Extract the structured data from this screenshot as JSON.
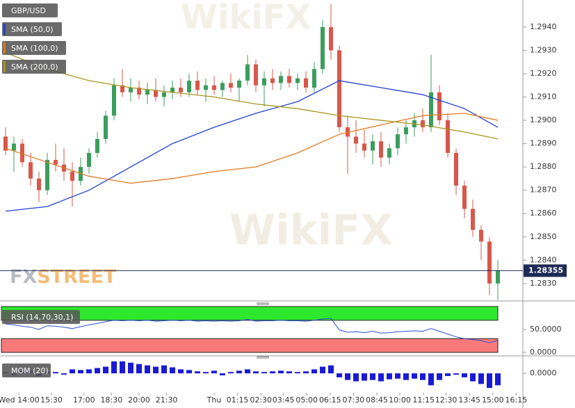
{
  "watermark": [
    "FX",
    "STREET",
    "WikiFX"
  ],
  "chart_data": [
    {
      "type": "candlestick",
      "title": "GBP/USD",
      "ylim": [
        1.28228,
        1.29516
      ],
      "yticks": [
        {
          "value": 1.283,
          "label": "1.2830"
        },
        {
          "value": 1.284,
          "label": "1.2840"
        },
        {
          "value": 1.285,
          "label": "1.2850"
        },
        {
          "value": 1.286,
          "label": "1.2860"
        },
        {
          "value": 1.287,
          "label": "1.2870"
        },
        {
          "value": 1.288,
          "label": "1.2880"
        },
        {
          "value": 1.289,
          "label": "1.2890"
        },
        {
          "value": 1.29,
          "label": "1.2900"
        },
        {
          "value": 1.291,
          "label": "1.2910"
        },
        {
          "value": 1.292,
          "label": "1.2920"
        },
        {
          "value": 1.293,
          "label": "1.2930"
        },
        {
          "value": 1.294,
          "label": "1.2940"
        }
      ],
      "xticks": [
        {
          "value": 1.6,
          "label": "Wed 14:00"
        },
        {
          "value": 5.5,
          "label": "15:30"
        },
        {
          "value": 9.4,
          "label": "17:00"
        },
        {
          "value": 12.7,
          "label": "18:30"
        },
        {
          "value": 16,
          "label": "20:00"
        },
        {
          "value": 19.3,
          "label": "21:30"
        },
        {
          "value": 25,
          "label": "Thu"
        },
        {
          "value": 27.8,
          "label": "01:15"
        },
        {
          "value": 30.6,
          "label": "02:30"
        },
        {
          "value": 33.3,
          "label": "03:45"
        },
        {
          "value": 36.1,
          "label": "05:00"
        },
        {
          "value": 38.9,
          "label": "06:15"
        },
        {
          "value": 41.7,
          "label": "07:30"
        },
        {
          "value": 44.5,
          "label": "08:45"
        },
        {
          "value": 47.25,
          "label": "10:00"
        },
        {
          "value": 50.1,
          "label": "11:15"
        },
        {
          "value": 52.8,
          "label": "12:30"
        },
        {
          "value": 55.6,
          "label": "13:45"
        },
        {
          "value": 58.4,
          "label": "15:00"
        },
        {
          "value": 61.2,
          "label": "16:15"
        }
      ],
      "last_price": 1.28355,
      "up_color": "#3c9d5d",
      "down_color": "#d9574a",
      "open": [
        1.2893,
        1.2887,
        1.289,
        1.2882,
        1.2875,
        1.287,
        1.2883,
        1.2881,
        1.2878,
        1.2874,
        1.288,
        1.2886,
        1.2892,
        1.2902,
        1.2915,
        1.2912,
        1.2914,
        1.2911,
        1.2913,
        1.291,
        1.2912,
        1.2914,
        1.2912,
        1.2917,
        1.2913,
        1.2915,
        1.2913,
        1.2916,
        1.2914,
        1.2917,
        1.2924,
        1.2915,
        1.2918,
        1.2916,
        1.2919,
        1.2916,
        1.2918,
        1.2914,
        1.2922,
        1.294,
        1.293,
        1.2897,
        1.2893,
        1.289,
        1.2887,
        1.2891,
        1.2884,
        1.2888,
        1.2894,
        1.2897,
        1.29,
        1.2897,
        1.2912,
        1.29,
        1.2886,
        1.2872,
        1.2862,
        1.2853,
        1.2848,
        1.283
      ],
      "high": [
        1.2897,
        1.2893,
        1.2892,
        1.2886,
        1.2878,
        1.2886,
        1.289,
        1.2888,
        1.2882,
        1.2884,
        1.2888,
        1.2895,
        1.2904,
        1.2918,
        1.2922,
        1.2918,
        1.2917,
        1.2916,
        1.2918,
        1.2915,
        1.2917,
        1.2918,
        1.292,
        1.2921,
        1.2918,
        1.2919,
        1.2917,
        1.292,
        1.2918,
        1.2928,
        1.2926,
        1.2921,
        1.2922,
        1.2921,
        1.2922,
        1.292,
        1.2921,
        1.2925,
        1.2943,
        1.295,
        1.2932,
        1.2902,
        1.29,
        1.2896,
        1.2894,
        1.2895,
        1.289,
        1.2897,
        1.29,
        1.2903,
        1.2905,
        1.2928,
        1.2915,
        1.2903,
        1.2888,
        1.2874,
        1.2866,
        1.2855,
        1.285,
        1.284
      ],
      "low": [
        1.2885,
        1.2878,
        1.288,
        1.2872,
        1.2865,
        1.2868,
        1.2878,
        1.2874,
        1.2863,
        1.2872,
        1.2877,
        1.2884,
        1.289,
        1.29,
        1.291,
        1.2908,
        1.2909,
        1.2907,
        1.2908,
        1.2906,
        1.2909,
        1.291,
        1.291,
        1.2911,
        1.2908,
        1.2911,
        1.291,
        1.2912,
        1.2908,
        1.2915,
        1.2912,
        1.2906,
        1.2913,
        1.2913,
        1.2914,
        1.2913,
        1.2912,
        1.2912,
        1.292,
        1.2926,
        1.2895,
        1.2877,
        1.2886,
        1.2884,
        1.2881,
        1.288,
        1.2881,
        1.2885,
        1.289,
        1.2893,
        1.2895,
        1.2895,
        1.2898,
        1.2884,
        1.2868,
        1.2858,
        1.285,
        1.284,
        1.2825,
        1.2823
      ],
      "close": [
        1.2887,
        1.289,
        1.2882,
        1.2875,
        1.287,
        1.2883,
        1.2881,
        1.2878,
        1.2874,
        1.288,
        1.2886,
        1.2892,
        1.2902,
        1.2915,
        1.2912,
        1.2914,
        1.2911,
        1.2913,
        1.291,
        1.2912,
        1.2914,
        1.2912,
        1.2917,
        1.2913,
        1.2915,
        1.2913,
        1.2916,
        1.2914,
        1.2917,
        1.2924,
        1.2915,
        1.2918,
        1.2916,
        1.2919,
        1.2916,
        1.2918,
        1.2914,
        1.2922,
        1.294,
        1.293,
        1.2897,
        1.2893,
        1.289,
        1.2887,
        1.2891,
        1.2884,
        1.2888,
        1.2894,
        1.2897,
        1.29,
        1.2897,
        1.2912,
        1.29,
        1.2886,
        1.2872,
        1.2862,
        1.2853,
        1.2848,
        1.283,
        1.28355
      ],
      "series": [
        {
          "name": "SMA (50,0)",
          "color": "#2140d0",
          "x": [
            0,
            5,
            10,
            15,
            20,
            25,
            30,
            35,
            40,
            45,
            50,
            55,
            59
          ],
          "values": [
            1.2861,
            1.2863,
            1.287,
            1.288,
            1.289,
            1.2897,
            1.2903,
            1.2908,
            1.2917,
            1.2914,
            1.2911,
            1.2905,
            1.2897
          ]
        },
        {
          "name": "SMA (100,0)",
          "color": "#e07a20",
          "x": [
            0,
            5,
            10,
            15,
            20,
            25,
            30,
            35,
            40,
            45,
            50,
            55,
            59
          ],
          "values": [
            1.2888,
            1.2882,
            1.2876,
            1.2873,
            1.2875,
            1.2878,
            1.288,
            1.2886,
            1.2894,
            1.2898,
            1.2902,
            1.2903,
            1.29
          ]
        },
        {
          "name": "SMA (200,0)",
          "color": "#a8951c",
          "x": [
            0,
            5,
            10,
            15,
            20,
            25,
            30,
            35,
            40,
            45,
            50,
            55,
            59
          ],
          "values": [
            1.2929,
            1.2922,
            1.2917,
            1.2914,
            1.2912,
            1.291,
            1.2907,
            1.2905,
            1.2902,
            1.29,
            1.2898,
            1.2895,
            1.2892
          ]
        }
      ]
    },
    {
      "type": "line",
      "title": "RSI (14,70,30,1)",
      "ylim": [
        0,
        100
      ],
      "yticks": [
        {
          "value": 0,
          "label": "0.0000"
        },
        {
          "value": 50,
          "label": "50.0000"
        }
      ],
      "overbought": 70,
      "oversold": 30,
      "color": "#2b4fd6",
      "values": [
        62,
        60,
        57,
        55,
        50,
        58,
        57,
        55,
        52,
        56,
        60,
        63,
        67,
        70,
        69,
        70,
        69,
        70,
        68,
        69,
        70,
        69,
        70,
        68,
        69,
        68,
        69,
        68,
        69,
        72,
        68,
        69,
        69,
        70,
        69,
        69,
        68,
        70,
        73,
        74,
        49,
        44,
        45,
        43,
        46,
        42,
        43,
        45,
        46,
        47,
        46,
        52,
        46,
        40,
        34,
        30,
        28,
        26,
        21,
        26
      ]
    },
    {
      "type": "bar",
      "title": "MOM (20)",
      "ylim": [
        -0.0026,
        0.002
      ],
      "yticks": [
        {
          "value": 0,
          "label": "0.0000"
        }
      ],
      "color": "#1a1ad6",
      "values": [
        0.0002,
        -0.0003,
        0.0003,
        0.0004,
        -0.0004,
        0.0003,
        0.0002,
        -0.0002,
        0.0006,
        0.0005,
        0.0006,
        0.0008,
        0.001,
        0.0018,
        0.0018,
        0.0016,
        0.0014,
        0.0012,
        0.001,
        0.0012,
        0.0009,
        0.0006,
        0.0005,
        0.0003,
        0.0002,
        0.0004,
        -0.0003,
        0.0002,
        0.0004,
        0.0006,
        0.0003,
        0.0002,
        0.0003,
        0.0004,
        0.0003,
        0.0002,
        0.0003,
        0.0006,
        0.001,
        0.0012,
        -0.0006,
        -0.001,
        -0.0012,
        -0.0011,
        -0.001,
        -0.0012,
        -0.0009,
        -0.0008,
        -0.001,
        -0.0008,
        -0.001,
        -0.0018,
        -0.001,
        -0.0004,
        -0.0002,
        -0.0006,
        -0.0012,
        -0.0016,
        -0.0022,
        -0.0018
      ]
    }
  ]
}
